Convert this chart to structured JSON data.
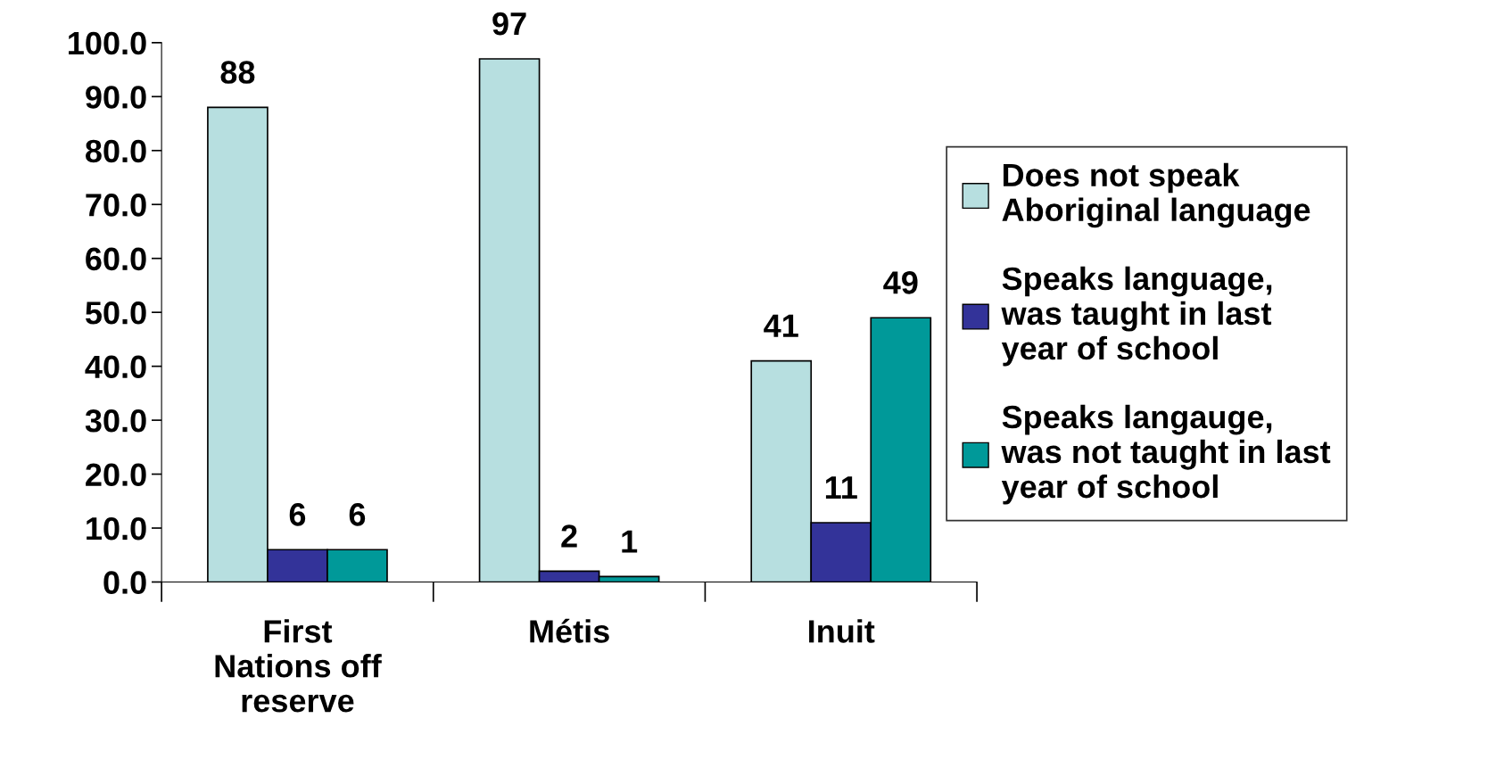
{
  "chart_data": {
    "type": "bar",
    "categories": [
      "First\nNations off\nreserve",
      "Métis",
      "Inuit"
    ],
    "series": [
      {
        "name": "Does not speak\nAboriginal language",
        "color": "#b7dfe0",
        "values": [
          88,
          97,
          41
        ]
      },
      {
        "name": "Speaks language,\nwas taught in last\nyear of school",
        "color": "#333399",
        "values": [
          6,
          2,
          11
        ]
      },
      {
        "name": "Speaks langauge,\nwas not taught in last\nyear of school",
        "color": "#009999",
        "values": [
          6,
          1,
          49
        ]
      }
    ],
    "ylim": [
      0,
      100
    ],
    "yticks": [
      {
        "value": 0,
        "label": "0.0"
      },
      {
        "value": 10,
        "label": "10.0"
      },
      {
        "value": 20,
        "label": "20.0"
      },
      {
        "value": 30,
        "label": "30.0"
      },
      {
        "value": 40,
        "label": "40.0"
      },
      {
        "value": 50,
        "label": "50.0"
      },
      {
        "value": 60,
        "label": "60.0"
      },
      {
        "value": 70,
        "label": "70.0"
      },
      {
        "value": 80,
        "label": "80.0"
      },
      {
        "value": 90,
        "label": "90.0"
      },
      {
        "value": 100,
        "label": "100.0"
      }
    ],
    "data_labels": true,
    "grid": false,
    "legend": "right"
  }
}
